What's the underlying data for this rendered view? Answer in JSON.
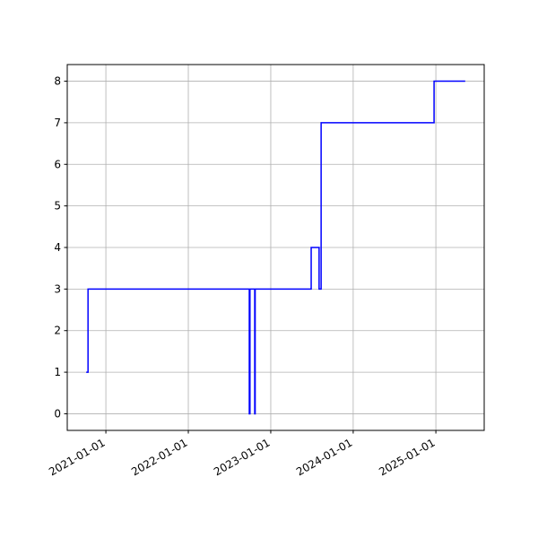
{
  "chart_data": {
    "type": "line",
    "drawstyle": "steps-post",
    "x": [
      "2020-10-06",
      "2020-10-14",
      "2022-09-28",
      "2022-10-01",
      "2022-10-22",
      "2022-10-24",
      "2023-06-29",
      "2023-08-03",
      "2023-08-12",
      "2024-12-24",
      "2025-05-11"
    ],
    "series": [
      {
        "color": "#0000ff",
        "values": [
          1,
          3,
          0,
          3,
          0,
          3,
          4,
          3,
          7,
          8,
          8
        ]
      }
    ],
    "xlim": [
      "2020-07-14",
      "2025-08-03"
    ],
    "xticks": [
      "2021-01-01",
      "2022-01-01",
      "2023-01-01",
      "2024-01-01",
      "2025-01-01"
    ],
    "ylim": [
      -0.4,
      8.4
    ],
    "yticks": [
      0,
      1,
      2,
      3,
      4,
      5,
      6,
      7,
      8
    ],
    "grid": true
  }
}
